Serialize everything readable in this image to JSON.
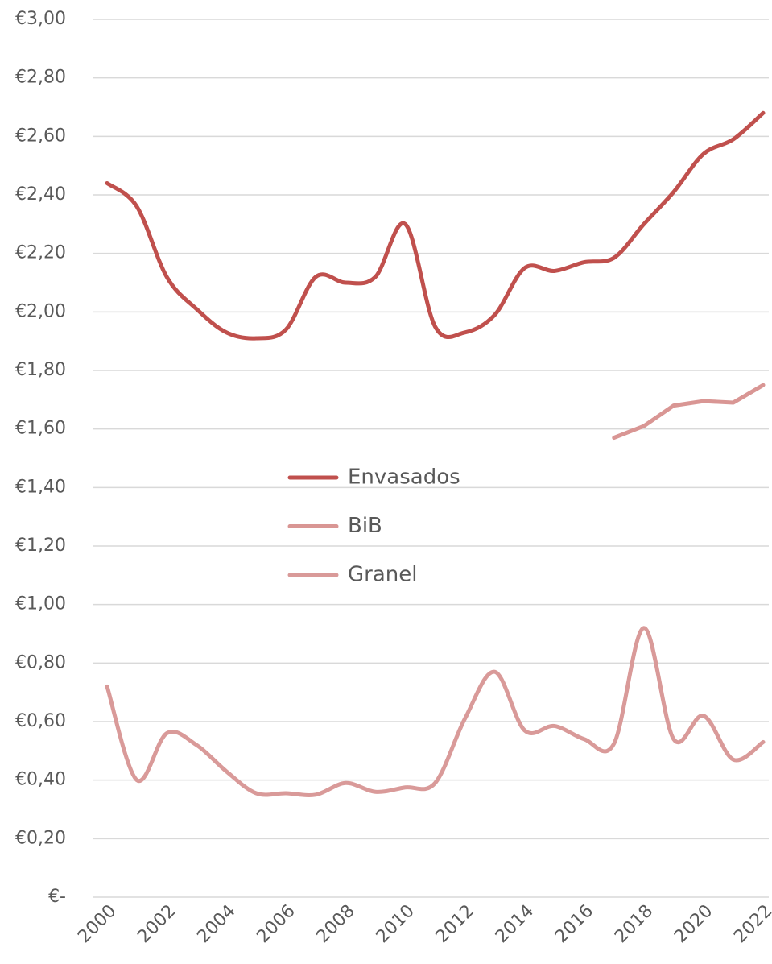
{
  "chart_data": {
    "type": "line",
    "categories": [
      "2000",
      null,
      "2002",
      null,
      "2004",
      null,
      "2006",
      null,
      "2008",
      null,
      "2010",
      null,
      "2012",
      null,
      "2014",
      null,
      "2016",
      null,
      "2018",
      null,
      "2020",
      null,
      "2022"
    ],
    "series": [
      {
        "name": "Envasados",
        "color": "#c0504d",
        "smooth": true,
        "values": [
          2.44,
          2.36,
          2.12,
          2.01,
          1.93,
          1.91,
          1.94,
          2.12,
          2.1,
          2.12,
          2.3,
          1.95,
          1.93,
          1.99,
          2.15,
          2.14,
          2.17,
          2.185,
          2.3,
          2.41,
          2.54,
          2.59,
          2.68
        ]
      },
      {
        "name": "BiB",
        "color": "#d99694",
        "smooth": false,
        "values": [
          null,
          null,
          null,
          null,
          null,
          null,
          null,
          null,
          null,
          null,
          null,
          null,
          null,
          null,
          null,
          null,
          null,
          1.57,
          1.61,
          1.68,
          1.695,
          1.69,
          1.75
        ]
      },
      {
        "name": "Granel",
        "color": "#d99a99",
        "smooth": true,
        "values": [
          0.72,
          0.4,
          0.56,
          0.52,
          0.43,
          0.355,
          0.355,
          0.35,
          0.39,
          0.36,
          0.375,
          0.39,
          0.61,
          0.77,
          0.57,
          0.585,
          0.54,
          0.525,
          0.92,
          0.54,
          0.62,
          0.47,
          0.53
        ]
      }
    ],
    "ylim": [
      0,
      3
    ],
    "yticks": [
      {
        "value": 0,
        "label": "€-"
      },
      {
        "value": 0.2,
        "label": "€0,20"
      },
      {
        "value": 0.4,
        "label": "€0,40"
      },
      {
        "value": 0.6,
        "label": "€0,60"
      },
      {
        "value": 0.8,
        "label": "€0,80"
      },
      {
        "value": 1,
        "label": "€1,00"
      },
      {
        "value": 1.2,
        "label": "€1,20"
      },
      {
        "value": 1.4,
        "label": "€1,40"
      },
      {
        "value": 1.6,
        "label": "€1,60"
      },
      {
        "value": 1.8,
        "label": "€1,80"
      },
      {
        "value": 2,
        "label": "€2,00"
      },
      {
        "value": 2.2,
        "label": "€2,20"
      },
      {
        "value": 2.4,
        "label": "€2,40"
      },
      {
        "value": 2.6,
        "label": "€2,60"
      },
      {
        "value": 2.8,
        "label": "€2,80"
      },
      {
        "value": 3,
        "label": "€3,00"
      }
    ],
    "grid": true,
    "legend": "center"
  }
}
